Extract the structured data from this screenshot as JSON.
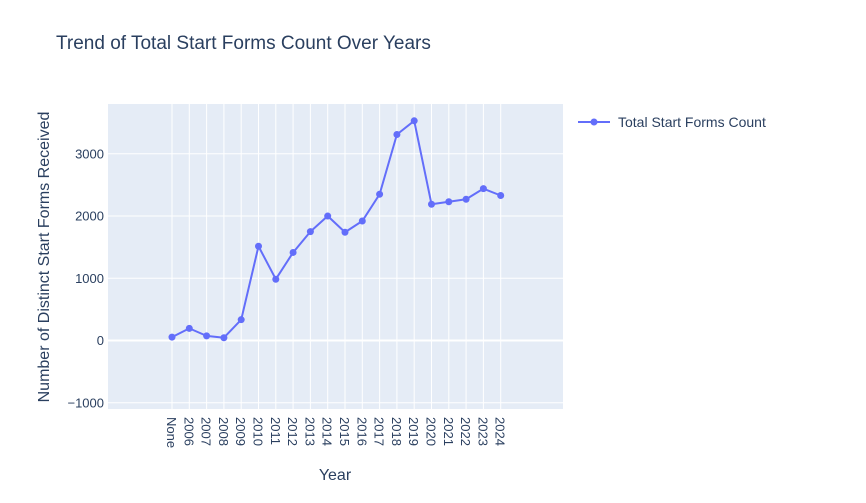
{
  "chart_data": {
    "type": "line",
    "title": "Trend of Total Start Forms Count Over Years",
    "xlabel": "Year",
    "ylabel": "Number of Distinct Start Forms Received",
    "categories": [
      "None",
      "2006",
      "2007",
      "2008",
      "2009",
      "2010",
      "2011",
      "2012",
      "2013",
      "2014",
      "2015",
      "2016",
      "2017",
      "2018",
      "2019",
      "2020",
      "2021",
      "2022",
      "2023",
      "2024"
    ],
    "series": [
      {
        "name": "Total Start Forms Count",
        "color": "#636efa",
        "values": [
          55,
          195,
          75,
          45,
          335,
          1515,
          985,
          1415,
          1750,
          2000,
          1740,
          1920,
          2350,
          3310,
          3530,
          2190,
          2230,
          2270,
          2440,
          2330
        ]
      }
    ],
    "ylim": [
      -1100,
      3800
    ],
    "yticks": [
      -1000,
      0,
      1000,
      2000,
      3000
    ],
    "ytick_labels": [
      "−1000",
      "0",
      "1000",
      "2000",
      "3000"
    ],
    "grid": true,
    "legend_position": "top-right",
    "plot_bg": "#e5ecf6"
  }
}
